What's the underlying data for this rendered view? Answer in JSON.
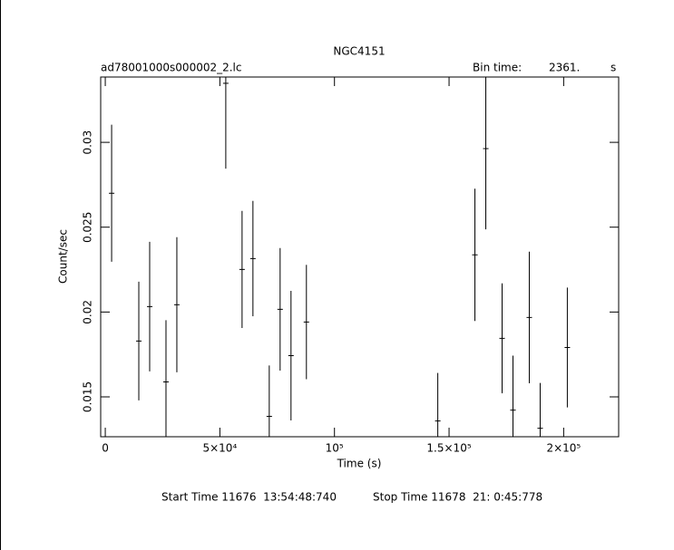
{
  "chart_data": {
    "type": "errorbar",
    "title": "NGC4151",
    "subtitle": "ad78001000s000002_2.lc",
    "bin_time_label": "Bin time:",
    "bin_time": "2361.",
    "bin_time_unit": "s",
    "xlabel": "Time (s)",
    "ylabel": "Count/sec",
    "start_time": "Start Time 11676  13:54:48:740",
    "stop_time": "Stop Time 11678  21: 0:45:778",
    "xlim": [
      -2000,
      224000
    ],
    "ylim": [
      0.01265,
      0.03385
    ],
    "xticks": [
      0,
      {
        "value": 50000,
        "label": "5×10⁴"
      },
      {
        "value": 100000,
        "label": "10⁵"
      },
      {
        "value": 150000,
        "label": "1.5×10⁵"
      },
      {
        "value": 200000,
        "label": "2×10⁵"
      }
    ],
    "yticks": [
      0.015,
      0.02,
      0.025,
      0.03
    ],
    "color": "#000000",
    "x": [
      2770,
      14630,
      19370,
      26490,
      31230,
      52580,
      59690,
      64430,
      71550,
      76290,
      81040,
      87760,
      145080,
      161280,
      166030,
      173140,
      177890,
      185000,
      189750,
      201600
    ],
    "series": [
      {
        "name": "Count/sec",
        "values": [
          0.027,
          0.01829,
          0.02032,
          0.01588,
          0.02043,
          0.03348,
          0.02251,
          0.02315,
          0.01385,
          0.02016,
          0.01743,
          0.01941,
          0.01358,
          0.02337,
          0.02963,
          0.01845,
          0.01422,
          0.01968,
          0.01315,
          0.01791
        ],
        "errors": [
          0.00404,
          0.0035,
          0.00382,
          0.00364,
          0.00398,
          0.00503,
          0.00345,
          0.0034,
          0.003,
          0.00361,
          0.00382,
          0.00337,
          0.00283,
          0.0039,
          0.00476,
          0.00324,
          0.00321,
          0.00388,
          0.00267,
          0.00353
        ]
      }
    ]
  }
}
